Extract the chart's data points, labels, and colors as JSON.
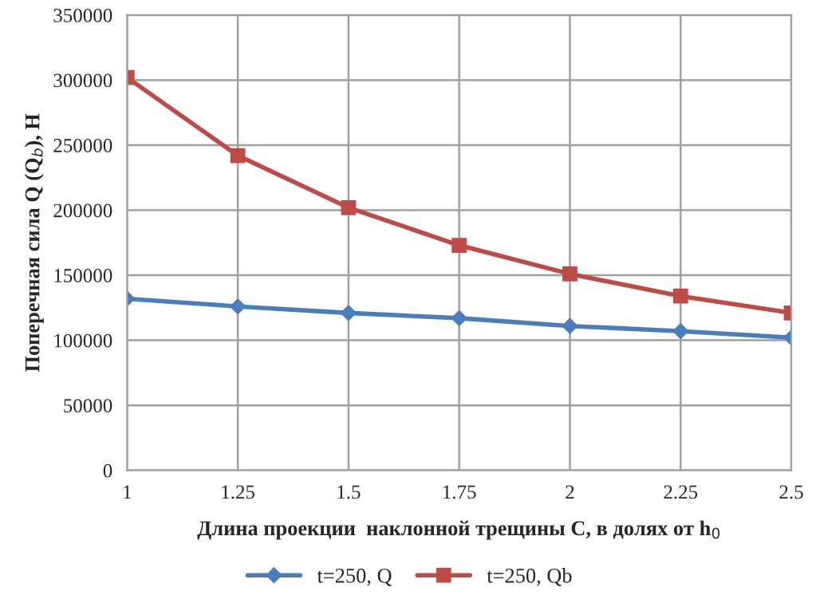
{
  "chart_data": {
    "type": "line",
    "xlabel": "Длина проекции  наклонной трещины С, в долях от h$_{0}$",
    "ylabel": "Поперечная сила Q (Q$_{b}$), Н",
    "x": [
      1,
      1.25,
      1.5,
      1.75,
      2,
      2.25,
      2.5
    ],
    "series": [
      {
        "name": "t=250, Q",
        "color": "#4a7ebb",
        "marker": "diamond",
        "values": [
          132000,
          126000,
          121000,
          117000,
          111000,
          107000,
          102000
        ]
      },
      {
        "name": "t=250, Qb",
        "color": "#be4b48",
        "marker": "square",
        "values": [
          302000,
          242000,
          202000,
          173000,
          151000,
          134000,
          121000
        ]
      }
    ],
    "xlim": [
      1,
      2.5
    ],
    "xticks": [
      1,
      1.25,
      1.5,
      1.75,
      2,
      2.25,
      2.5
    ],
    "ylim": [
      0,
      350000
    ],
    "yticks": [
      0,
      50000,
      100000,
      150000,
      200000,
      250000,
      300000,
      350000
    ],
    "grid": true,
    "legend": "bottom",
    "line_style": "solid"
  }
}
